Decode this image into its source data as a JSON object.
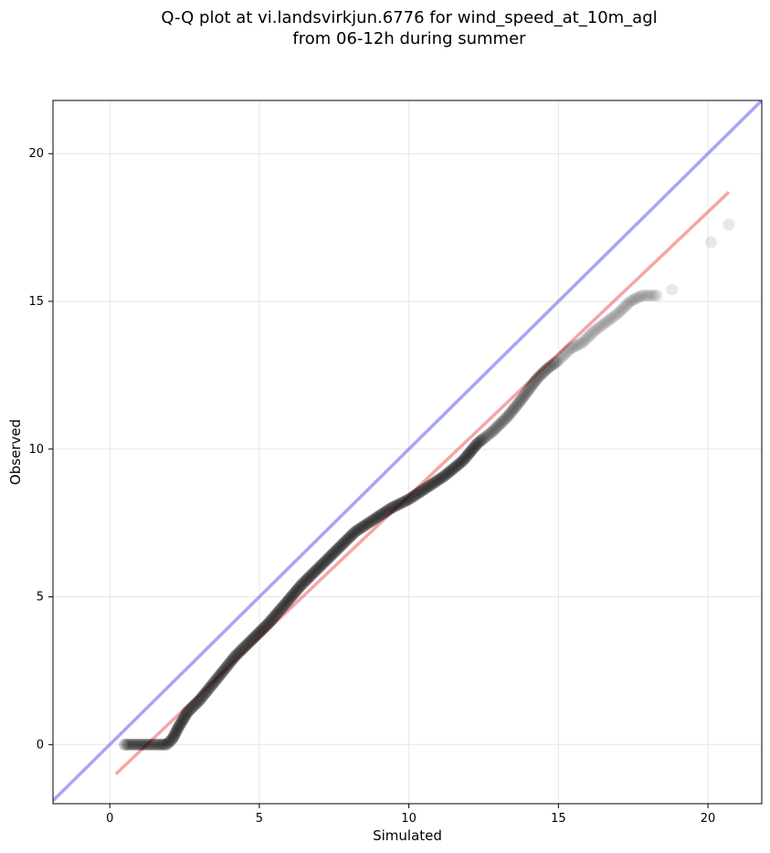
{
  "chart_data": {
    "type": "scatter",
    "title_line1": "Q-Q plot at vi.landsvirkjun.6776 for wind_speed_at_10m_agl",
    "title_line2": "from 06-12h during summer",
    "xlabel": "Simulated",
    "ylabel": "Observed",
    "xlim": [
      -1.9,
      21.8
    ],
    "ylim": [
      -2.0,
      21.8
    ],
    "xticks": [
      0,
      5,
      10,
      15,
      20
    ],
    "yticks": [
      0,
      5,
      10,
      15,
      20
    ],
    "grid": true,
    "colors": {
      "points": "#000000",
      "identity_line": "#7777ee",
      "fit_line": "#ee7777"
    },
    "identity_line": {
      "x": [
        -1.9,
        21.8
      ],
      "y": [
        -1.9,
        21.8
      ]
    },
    "fit_line": {
      "x": [
        0.2,
        20.7
      ],
      "y": [
        -1.0,
        18.7
      ]
    },
    "points": {
      "curve": [
        [
          0.5,
          0.0
        ],
        [
          0.8,
          0.0
        ],
        [
          1.1,
          0.0
        ],
        [
          1.4,
          0.0
        ],
        [
          1.7,
          0.0
        ],
        [
          1.9,
          0.0
        ],
        [
          2.1,
          0.2
        ],
        [
          2.3,
          0.6
        ],
        [
          2.6,
          1.1
        ],
        [
          3.0,
          1.5
        ],
        [
          3.4,
          2.0
        ],
        [
          3.8,
          2.5
        ],
        [
          4.2,
          3.0
        ],
        [
          4.7,
          3.5
        ],
        [
          5.3,
          4.1
        ],
        [
          5.9,
          4.8
        ],
        [
          6.4,
          5.4
        ],
        [
          7.0,
          6.0
        ],
        [
          7.6,
          6.6
        ],
        [
          8.2,
          7.2
        ],
        [
          8.8,
          7.6
        ],
        [
          9.4,
          8.0
        ],
        [
          10.0,
          8.3
        ],
        [
          10.6,
          8.7
        ],
        [
          11.2,
          9.1
        ],
        [
          11.8,
          9.6
        ],
        [
          12.3,
          10.2
        ],
        [
          12.8,
          10.6
        ],
        [
          13.3,
          11.1
        ],
        [
          13.7,
          11.6
        ],
        [
          14.0,
          12.0
        ],
        [
          14.3,
          12.4
        ],
        [
          14.6,
          12.7
        ],
        [
          15.0,
          13.0
        ],
        [
          15.4,
          13.4
        ],
        [
          15.8,
          13.6
        ],
        [
          16.2,
          14.0
        ],
        [
          16.6,
          14.3
        ],
        [
          17.0,
          14.6
        ],
        [
          17.4,
          15.0
        ],
        [
          17.8,
          15.2
        ],
        [
          18.3,
          15.2
        ]
      ],
      "tail": [
        [
          18.8,
          15.4
        ],
        [
          20.1,
          17.0
        ],
        [
          20.7,
          17.6
        ]
      ]
    }
  }
}
